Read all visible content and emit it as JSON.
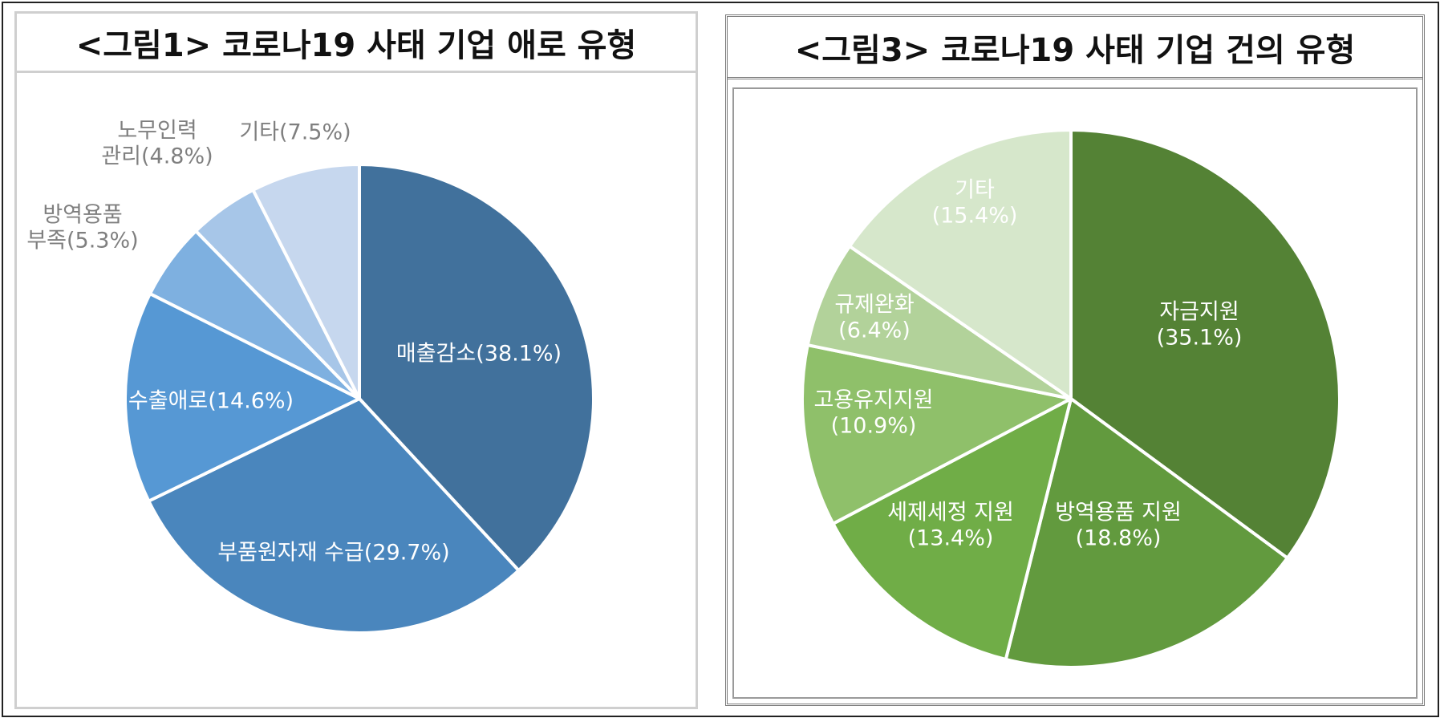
{
  "chart_data": [
    {
      "type": "pie",
      "title": "<그림1> 코로나19 사태 기업 애로 유형",
      "slices": [
        {
          "label": "매출감소(38.1%)",
          "lines": [
            "매출감소(38.1%)"
          ],
          "value": 38.1,
          "color": "#41719c",
          "text_color": "#ffffff"
        },
        {
          "label": "부품원자재 수급(29.7%)",
          "lines": [
            "부품원자재 수급(29.7%)"
          ],
          "value": 29.7,
          "color": "#4a86bd",
          "text_color": "#ffffff"
        },
        {
          "label": "수출애로(14.6%)",
          "lines": [
            "수출애로(14.6%)"
          ],
          "value": 14.6,
          "color": "#5698d4",
          "text_color": "#ffffff"
        },
        {
          "label": "방역용품 부족(5.3%)",
          "lines": [
            "방역용품",
            "부족(5.3%)"
          ],
          "value": 5.3,
          "color": "#7eb0e0",
          "text_color": "#7f7f7f"
        },
        {
          "label": "노무인력 관리(4.8%)",
          "lines": [
            "노무인력",
            "관리(4.8%)"
          ],
          "value": 4.8,
          "color": "#a7c6e8",
          "text_color": "#7f7f7f"
        },
        {
          "label": "기타(7.5%)",
          "lines": [
            "기타(7.5%)"
          ],
          "value": 7.5,
          "color": "#c6d7ee",
          "text_color": "#7f7f7f"
        }
      ]
    },
    {
      "type": "pie",
      "title": "<그림3> 코로나19 사태 기업 건의 유형",
      "slices": [
        {
          "label": "자금지원 (35.1%)",
          "lines": [
            "자금지원",
            "(35.1%)"
          ],
          "value": 35.1,
          "color": "#548235",
          "text_color": "#ffffff"
        },
        {
          "label": "방역용품 지원 (18.8%)",
          "lines": [
            "방역용품  지원",
            "(18.8%)"
          ],
          "value": 18.8,
          "color": "#629a3e",
          "text_color": "#ffffff"
        },
        {
          "label": "세제세정 지원 (13.4%)",
          "lines": [
            "세제세정  지원",
            "(13.4%)"
          ],
          "value": 13.4,
          "color": "#70ad47",
          "text_color": "#ffffff"
        },
        {
          "label": "고용유지지원 (10.9%)",
          "lines": [
            "고용유지지원",
            "(10.9%)"
          ],
          "value": 10.9,
          "color": "#8fc06a",
          "text_color": "#ffffff"
        },
        {
          "label": "규제완화 (6.4%)",
          "lines": [
            "규제완화",
            "(6.4%)"
          ],
          "value": 6.4,
          "color": "#b2d29a",
          "text_color": "#ffffff"
        },
        {
          "label": "기타 (15.4%)",
          "lines": [
            "기타",
            "(15.4%)"
          ],
          "value": 15.4,
          "color": "#d6e7cb",
          "text_color": "#ffffff"
        }
      ]
    }
  ]
}
